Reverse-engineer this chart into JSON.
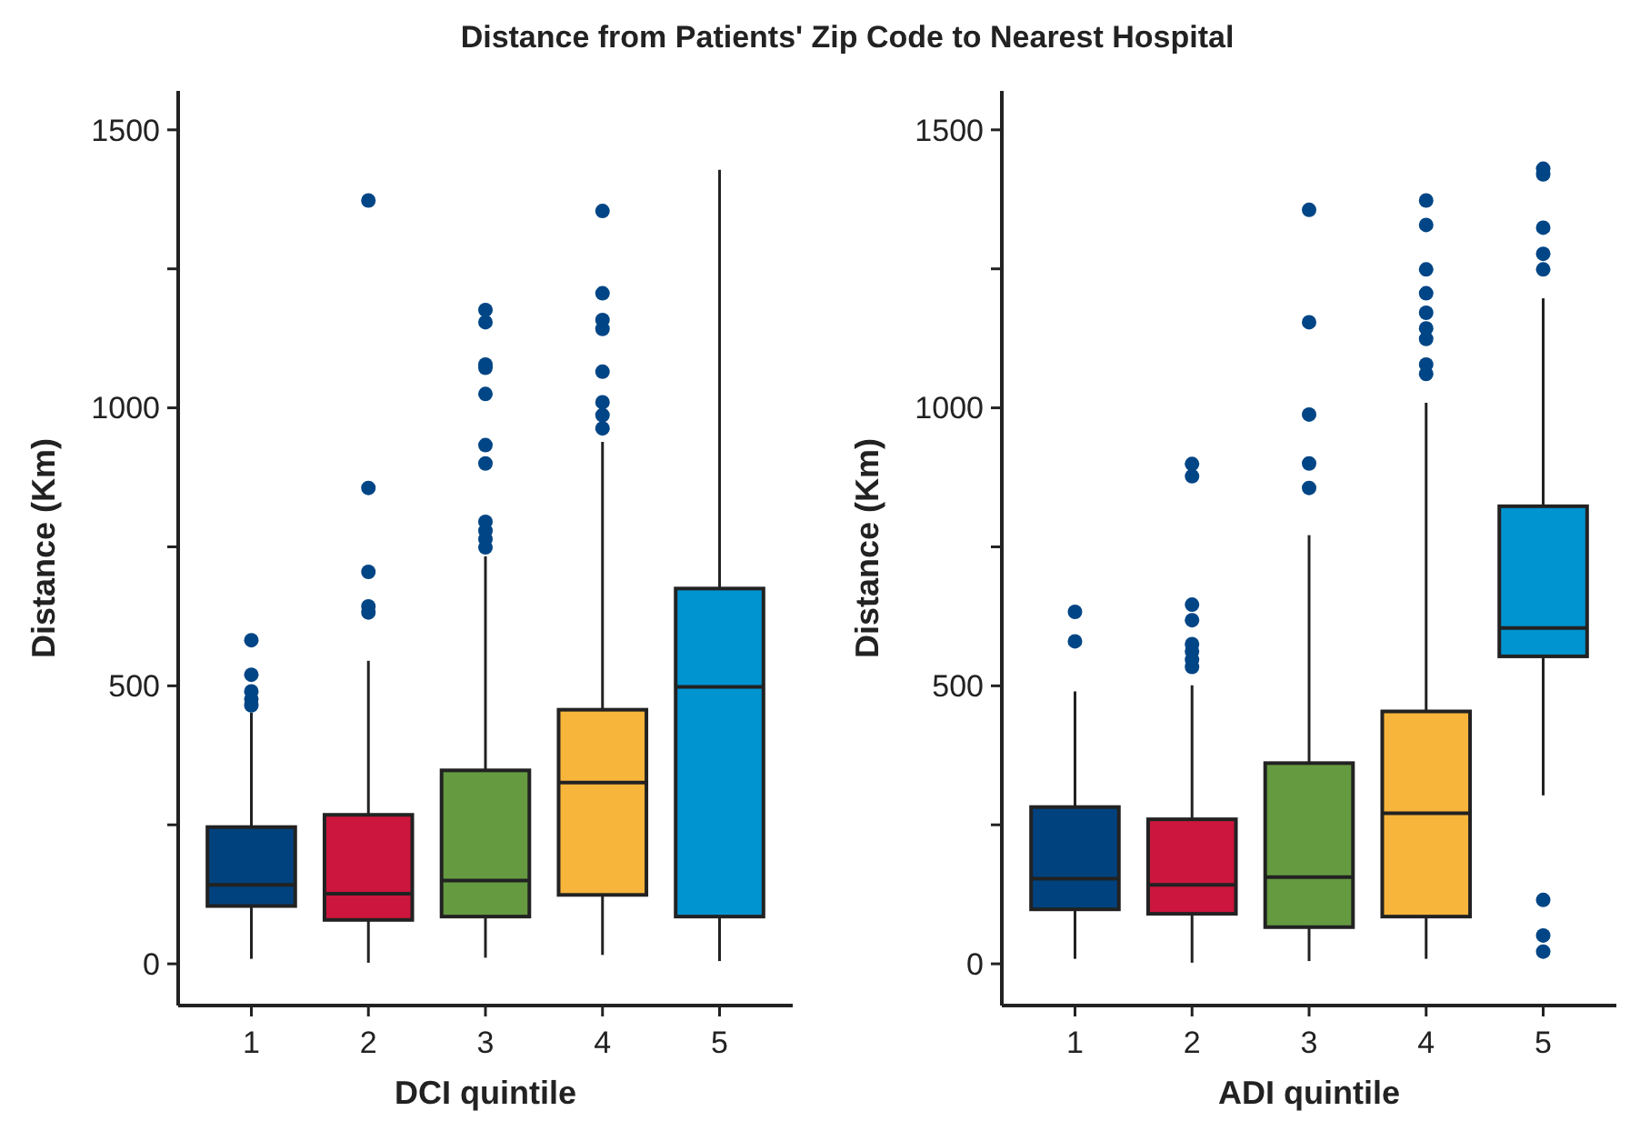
{
  "chart_data": [
    {
      "type": "box",
      "grid": false,
      "title": "Distance from Patients' Zip Code to Nearest Hospital",
      "xlabel": "DCI quintile",
      "ylabel": "Distance (Km)",
      "categories": [
        "1",
        "2",
        "3",
        "4",
        "5"
      ],
      "colors": [
        "#00427e",
        "#cc163d",
        "#659a41",
        "#f8b53b",
        "#0094d0"
      ],
      "ylim": [
        -75,
        1570
      ],
      "yticks": [
        0,
        {
          "value": 250,
          "label": null
        },
        500,
        {
          "value": 750,
          "label": null
        },
        1000,
        {
          "value": 1250,
          "label": null
        },
        1500
      ],
      "boxes": [
        {
          "low": 9,
          "q1": 104,
          "median": 142,
          "q3": 246,
          "high": 452
        },
        {
          "low": 2,
          "q1": 79,
          "median": 126,
          "q3": 268,
          "high": 545
        },
        {
          "low": 11,
          "q1": 85,
          "median": 150,
          "q3": 348,
          "high": 733
        },
        {
          "low": 16,
          "q1": 124,
          "median": 326,
          "q3": 457,
          "high": 939
        },
        {
          "low": 5,
          "q1": 85,
          "median": 498,
          "q3": 675,
          "high": 1428
        }
      ],
      "series": [
        {
          "type": "scatter",
          "color": "#004585",
          "x": [
            "1",
            "1",
            "1",
            "1",
            "1",
            "2",
            "2",
            "2",
            "2",
            "2",
            "3",
            "3",
            "3",
            "3",
            "3",
            "3",
            "3",
            "3",
            "3",
            "3",
            "3",
            "4",
            "4",
            "4",
            "4",
            "4",
            "4",
            "4",
            "4"
          ],
          "values": [
            465,
            476,
            490,
            520,
            582,
            632,
            643,
            705,
            856,
            1373,
            749,
            764,
            779,
            795,
            900,
            933,
            1025,
            1072,
            1078,
            1154,
            1176,
            963,
            987,
            1010,
            1065,
            1142,
            1158,
            1206,
            1354
          ]
        }
      ]
    },
    {
      "type": "box",
      "grid": false,
      "xlabel": "ADI quintile",
      "ylabel": "Distance (Km)",
      "categories": [
        "1",
        "2",
        "3",
        "4",
        "5"
      ],
      "colors": [
        "#00427e",
        "#cc163d",
        "#659a41",
        "#f8b53b",
        "#0094d0"
      ],
      "ylim": [
        -75,
        1570
      ],
      "yticks": [
        0,
        {
          "value": 250,
          "label": null
        },
        500,
        {
          "value": 750,
          "label": null
        },
        1000,
        {
          "value": 1250,
          "label": null
        },
        1500
      ],
      "boxes": [
        {
          "low": 9,
          "q1": 98,
          "median": 153,
          "q3": 282,
          "high": 490
        },
        {
          "low": 2,
          "q1": 90,
          "median": 142,
          "q3": 260,
          "high": 501
        },
        {
          "low": 5,
          "q1": 66,
          "median": 156,
          "q3": 361,
          "high": 771
        },
        {
          "low": 9,
          "q1": 85,
          "median": 271,
          "q3": 454,
          "high": 1009
        },
        {
          "low": 303,
          "q1": 553,
          "median": 604,
          "q3": 823,
          "high": 1197
        }
      ],
      "series": [
        {
          "type": "scatter",
          "color": "#004585",
          "x": [
            "1",
            "1",
            "2",
            "2",
            "2",
            "2",
            "2",
            "2",
            "2",
            "2",
            "3",
            "3",
            "3",
            "3",
            "3",
            "4",
            "4",
            "4",
            "4",
            "4",
            "4",
            "4",
            "4",
            "4",
            "5",
            "5",
            "5",
            "5",
            "5",
            "5",
            "5",
            "5"
          ],
          "values": [
            580,
            633,
            534,
            547,
            562,
            575,
            618,
            646,
            877,
            899,
            856,
            900,
            988,
            1154,
            1356,
            1061,
            1078,
            1124,
            1143,
            1171,
            1206,
            1249,
            1329,
            1373,
            22,
            51,
            115,
            1249,
            1277,
            1324,
            1420,
            1430
          ]
        }
      ]
    }
  ]
}
